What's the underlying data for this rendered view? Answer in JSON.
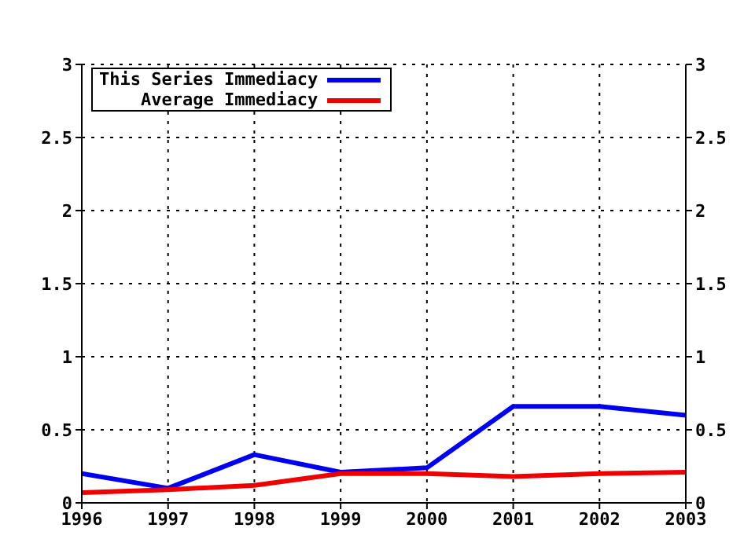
{
  "chart_data": {
    "type": "line",
    "x": [
      1996,
      1997,
      1998,
      1999,
      2000,
      2001,
      2002,
      2003
    ],
    "xlim": [
      1996,
      2003
    ],
    "xticks": [
      1996,
      1997,
      1998,
      1999,
      2000,
      2001,
      2002,
      2003
    ],
    "ylim": [
      0,
      3
    ],
    "yticks": [
      0,
      0.5,
      1,
      1.5,
      2,
      2.5,
      3
    ],
    "y2lim": [
      0,
      3
    ],
    "y2ticks": [
      0,
      0.5,
      1,
      1.5,
      2,
      2.5,
      3
    ],
    "grid": true,
    "legend": "top left",
    "marker": "none",
    "line_style": "solid",
    "series": [
      {
        "name": "This Series Immediacy",
        "color": "#0000ee",
        "values": [
          0.2,
          0.1,
          0.33,
          0.21,
          0.24,
          0.66,
          0.66,
          0.6
        ]
      },
      {
        "name": "Average Immediacy",
        "color": "#ee0000",
        "values": [
          0.07,
          0.09,
          0.12,
          0.2,
          0.2,
          0.18,
          0.2,
          0.21
        ]
      }
    ]
  }
}
